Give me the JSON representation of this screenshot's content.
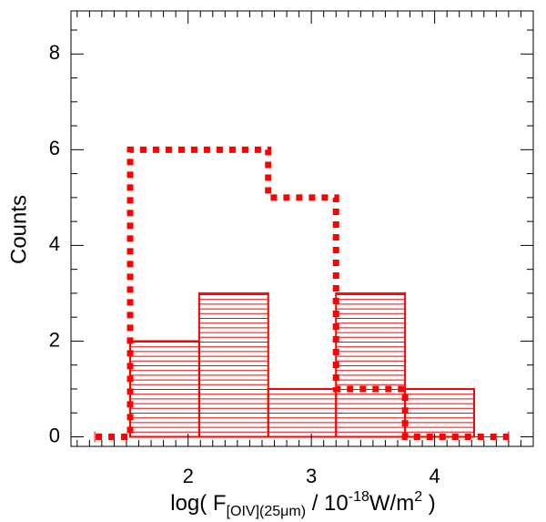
{
  "chart_data": {
    "type": "bar",
    "subtype": "histogram",
    "xlabel": {
      "prefix": "log( F",
      "subscript": "[OIV](25μm)",
      "middle": " / 10",
      "superscript": "-18",
      "unit": "W/m",
      "unit_superscript": "2",
      "suffix": " )"
    },
    "ylabel": "Counts",
    "xlim": [
      1.05,
      4.8
    ],
    "ylim": [
      -0.2,
      8.9
    ],
    "x_ticks": [
      2,
      3,
      4
    ],
    "x_tick_labels": [
      "2",
      "3",
      "4"
    ],
    "y_ticks": [
      0,
      2,
      4,
      6,
      8
    ],
    "y_tick_labels": [
      "0",
      "2",
      "4",
      "6",
      "8"
    ],
    "grid": false,
    "legend": "none",
    "series": [
      {
        "style": "solid outline with horizontal hatching",
        "color": "#ff0000",
        "bin_edges": [
          1.53,
          2.09,
          2.65,
          3.2,
          3.76,
          4.32
        ],
        "counts": [
          2,
          3,
          1,
          3,
          1
        ]
      },
      {
        "style": "thick dotted step outline",
        "color": "#ff0000",
        "bin_edges": [
          1.25,
          1.53,
          2.65,
          3.2,
          3.76,
          4.32,
          4.6
        ],
        "counts": [
          0,
          6,
          5,
          1,
          0,
          0
        ]
      }
    ]
  }
}
